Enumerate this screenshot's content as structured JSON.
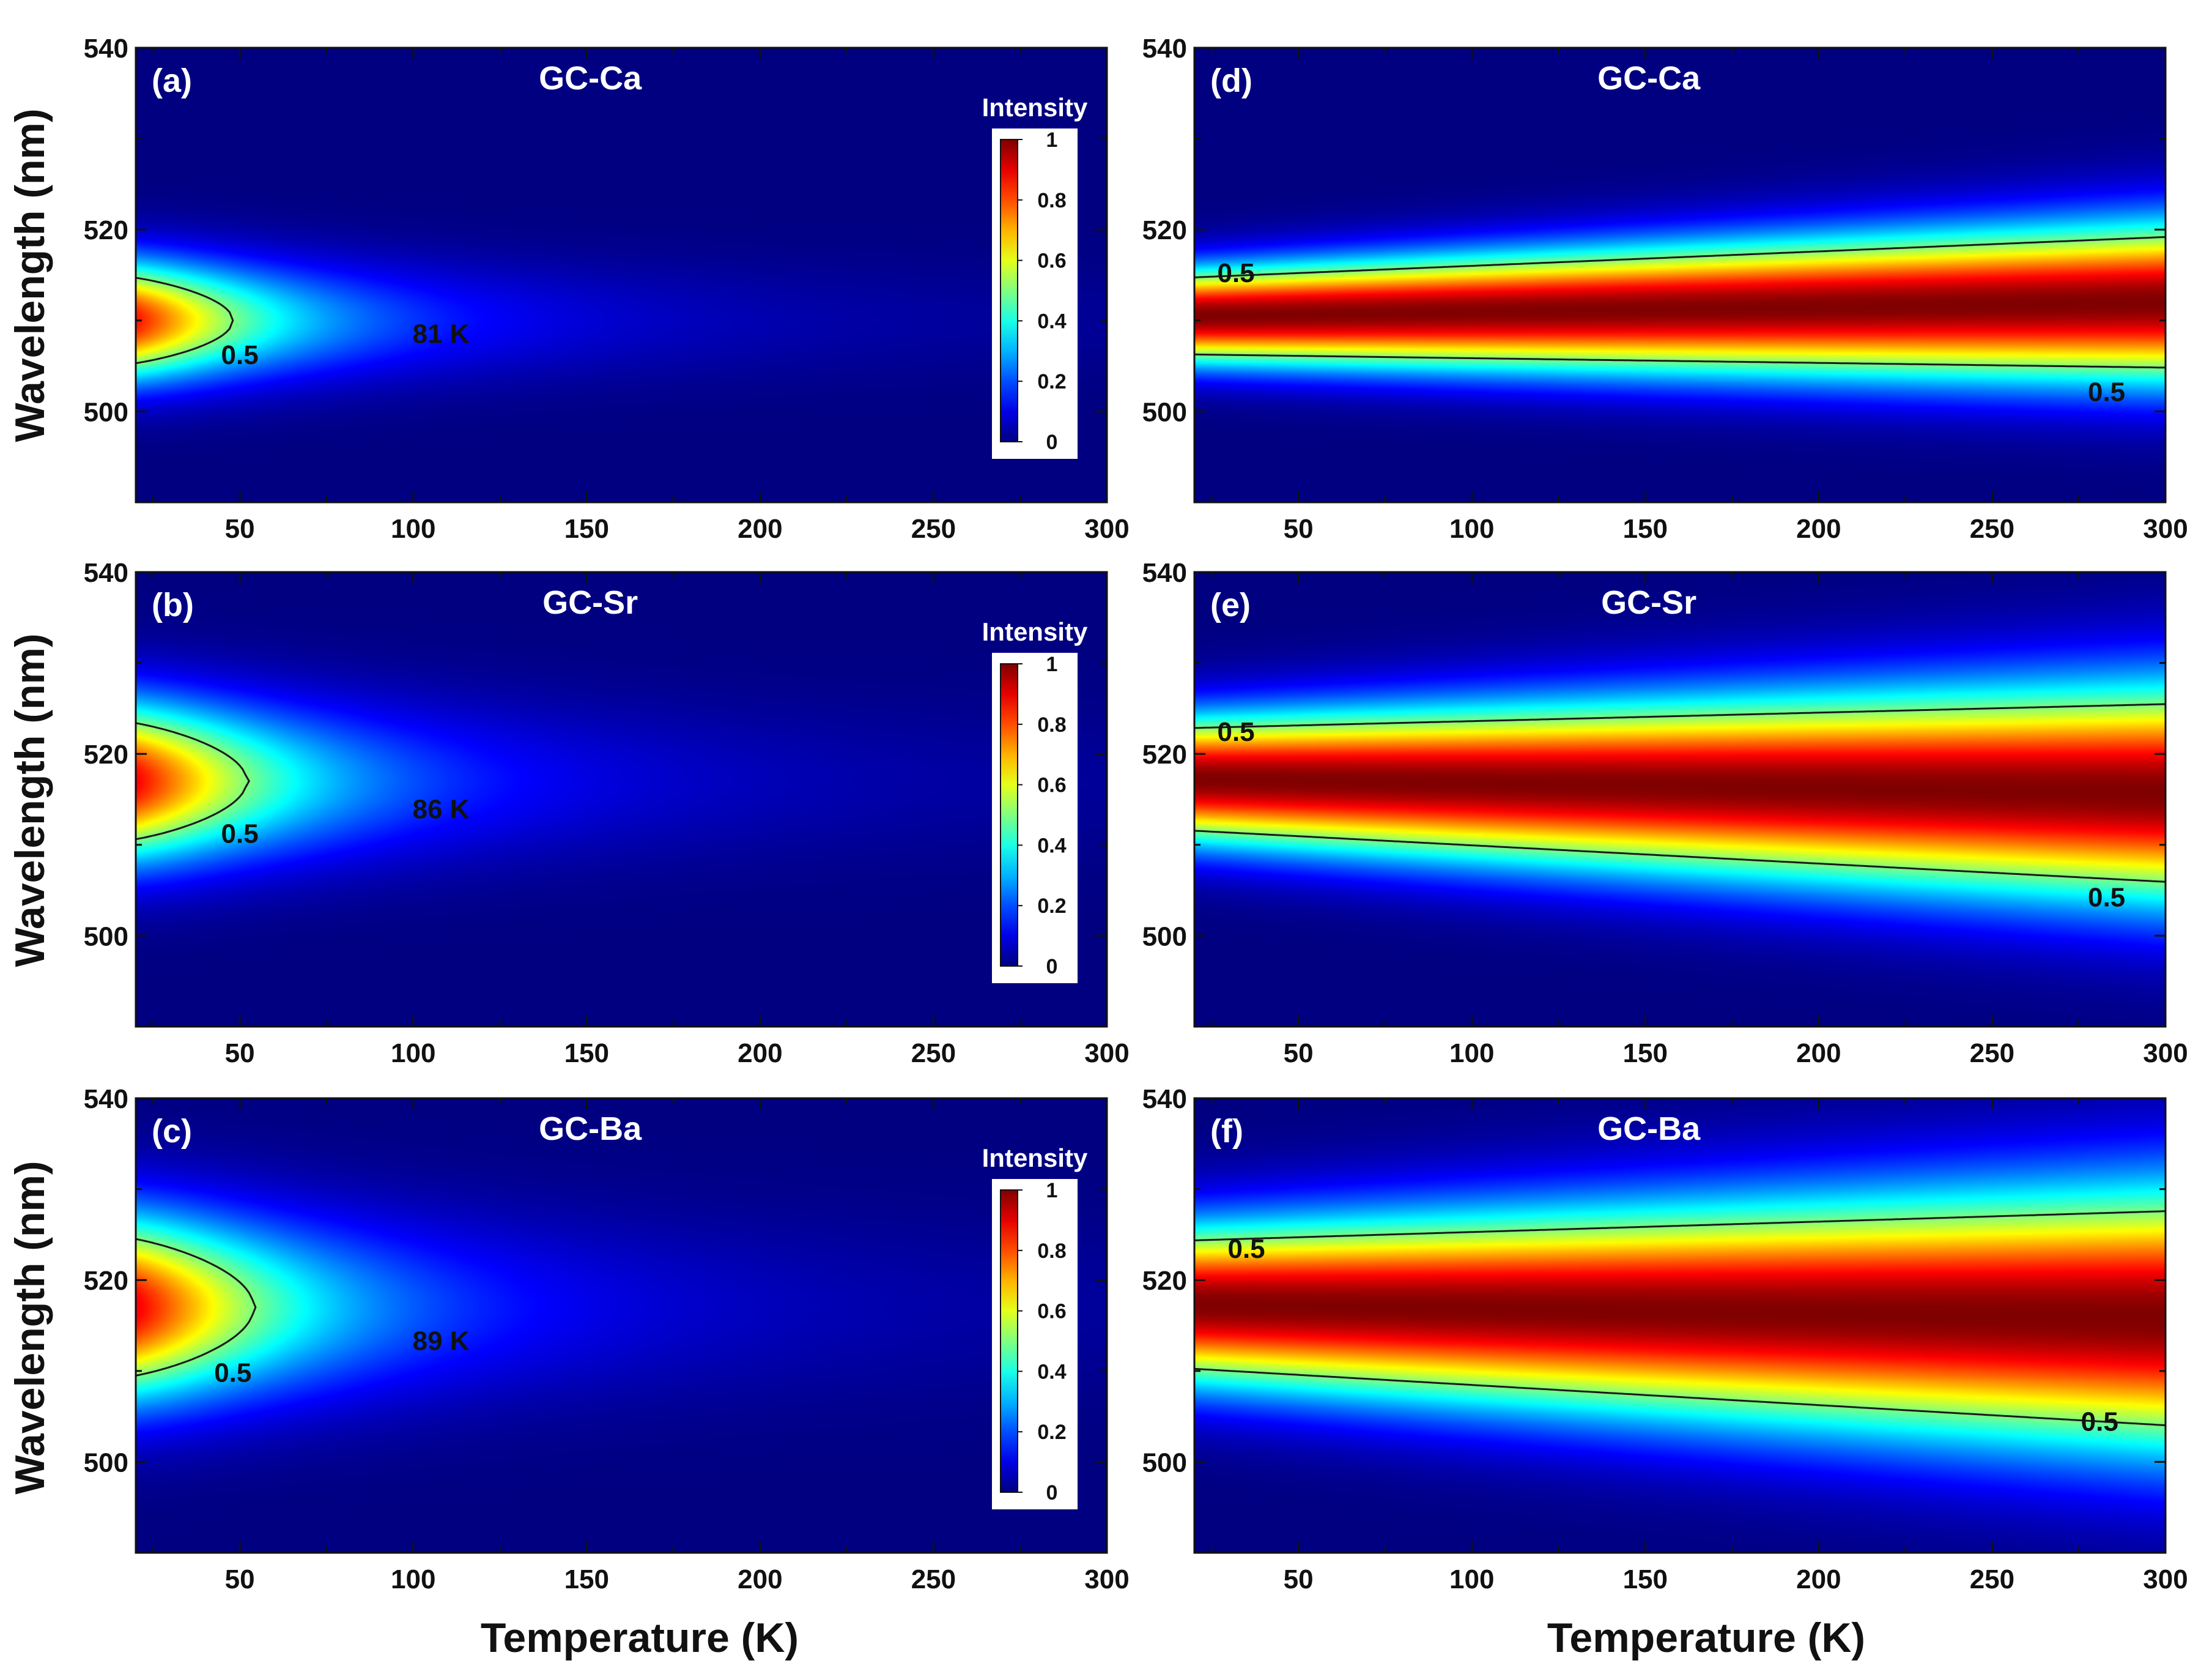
{
  "figure": {
    "x_axis_title": "Temperature (K)",
    "y_axis_title": "Wavelength (nm)"
  },
  "chart_data": [
    {
      "id": "a",
      "type": "heatmap",
      "panel_label": "(a)",
      "title": "GC-Ca",
      "xlim": [
        20,
        300
      ],
      "ylim": [
        490,
        540
      ],
      "x_ticks": [
        50,
        100,
        150,
        200,
        250,
        300
      ],
      "y_ticks": [
        500,
        520,
        540
      ],
      "model": {
        "lambda0": 510.0,
        "lambda_drift": 0.0,
        "sigma0": 4.5,
        "sigma_drift": 0.0,
        "T0": 48,
        "n": 2.1
      },
      "contour_level": 0.5,
      "contour_label": "0.5",
      "contour_label_pos": [
        50,
        506.3
      ],
      "annotation": "81 K",
      "annotation_pos": [
        108,
        508.6
      ],
      "colorbar": {
        "title": "Intensity",
        "ticks": [
          "0",
          "0.2",
          "0.4",
          "0.6",
          "0.8",
          "1"
        ]
      }
    },
    {
      "id": "b",
      "type": "heatmap",
      "panel_label": "(b)",
      "title": "GC-Sr",
      "xlim": [
        20,
        300
      ],
      "ylim": [
        490,
        540
      ],
      "x_ticks": [
        50,
        100,
        150,
        200,
        250,
        300
      ],
      "y_ticks": [
        500,
        520,
        540
      ],
      "model": {
        "lambda0": 517.0,
        "lambda_drift": 0.0,
        "sigma0": 6.0,
        "sigma_drift": 0.0,
        "T0": 52,
        "n": 2.1
      },
      "contour_level": 0.5,
      "contour_label": "0.5",
      "contour_label_pos": [
        50,
        511.3
      ],
      "annotation": "86 K",
      "annotation_pos": [
        108,
        514.0
      ],
      "colorbar": {
        "title": "Intensity",
        "ticks": [
          "0",
          "0.2",
          "0.4",
          "0.6",
          "0.8",
          "1"
        ]
      }
    },
    {
      "id": "c",
      "type": "heatmap",
      "panel_label": "(c)",
      "title": "GC-Ba",
      "xlim": [
        20,
        300
      ],
      "ylim": [
        490,
        540
      ],
      "x_ticks": [
        50,
        100,
        150,
        200,
        250,
        300
      ],
      "y_ticks": [
        500,
        520,
        540
      ],
      "model": {
        "lambda0": 517.0,
        "lambda_drift": 0.0,
        "sigma0": 7.0,
        "sigma_drift": 0.0,
        "T0": 54,
        "n": 2.1
      },
      "contour_level": 0.5,
      "contour_label": "0.5",
      "contour_label_pos": [
        48,
        509.9
      ],
      "annotation": "89 K",
      "annotation_pos": [
        108,
        513.4
      ],
      "colorbar": {
        "title": "Intensity",
        "ticks": [
          "0",
          "0.2",
          "0.4",
          "0.6",
          "0.8",
          "1"
        ]
      }
    },
    {
      "id": "d",
      "type": "heatmap",
      "panel_label": "(d)",
      "title": "GC-Ca",
      "xlim": [
        20,
        300
      ],
      "ylim": [
        490,
        540
      ],
      "x_ticks": [
        50,
        100,
        150,
        200,
        250,
        300
      ],
      "y_ticks": [
        500,
        520,
        540
      ],
      "model": {
        "lambda0": 510.5,
        "lambda_drift": 1.5,
        "sigma0": 3.6,
        "sigma_drift": 2.5,
        "T0": 0,
        "n": 0
      },
      "contour_level": 0.5,
      "contour_label": "0.5",
      "contour_label_pos": [
        32,
        515.3
      ],
      "contour_label2": "0.5",
      "contour_label2_pos": [
        283,
        502.2
      ],
      "colorbar": null
    },
    {
      "id": "e",
      "type": "heatmap",
      "panel_label": "(e)",
      "title": "GC-Sr",
      "xlim": [
        20,
        300
      ],
      "ylim": [
        490,
        540
      ],
      "x_ticks": [
        50,
        100,
        150,
        200,
        250,
        300
      ],
      "y_ticks": [
        500,
        520,
        540
      ],
      "model": {
        "lambda0": 517.2,
        "lambda_drift": -1.5,
        "sigma0": 4.8,
        "sigma_drift": 3.5,
        "T0": 0,
        "n": 0
      },
      "contour_level": 0.5,
      "contour_label": "0.5",
      "contour_label_pos": [
        32,
        522.5
      ],
      "contour_label2": "0.5",
      "contour_label2_pos": [
        283,
        504.3
      ],
      "colorbar": null
    },
    {
      "id": "f",
      "type": "heatmap",
      "panel_label": "(f)",
      "title": "GC-Ba",
      "xlim": [
        20,
        300
      ],
      "ylim": [
        490,
        540
      ],
      "x_ticks": [
        50,
        100,
        150,
        200,
        250,
        300
      ],
      "y_ticks": [
        500,
        520,
        540
      ],
      "model": {
        "lambda0": 517.3,
        "lambda_drift": -1.5,
        "sigma0": 6.0,
        "sigma_drift": 4.0,
        "T0": 0,
        "n": 0
      },
      "contour_level": 0.5,
      "contour_label": "0.5",
      "contour_label_pos": [
        35,
        523.5
      ],
      "contour_label2": "0.5",
      "contour_label2_pos": [
        281,
        504.5
      ],
      "colorbar": null
    }
  ]
}
